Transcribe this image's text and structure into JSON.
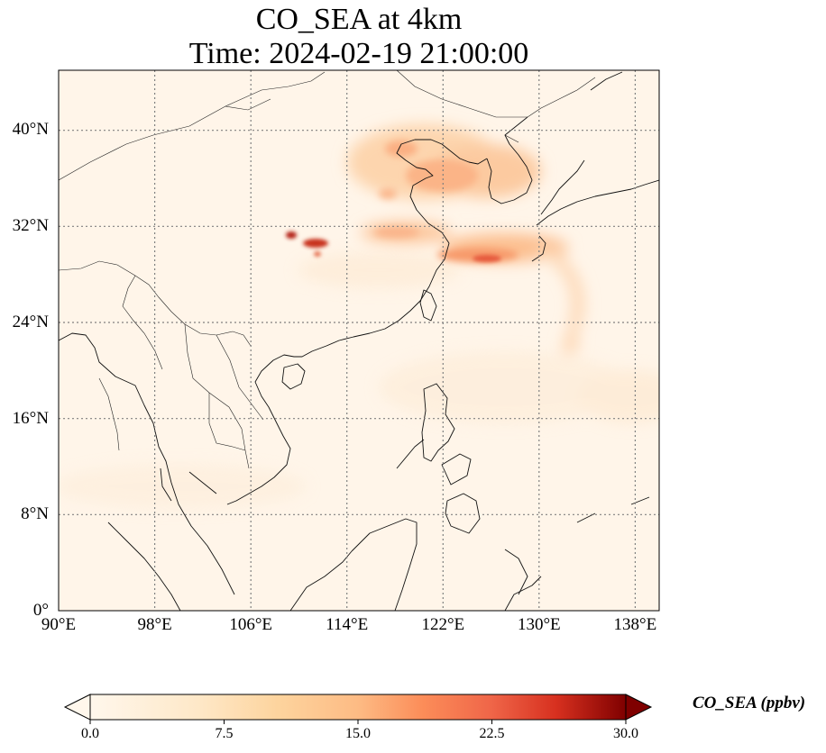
{
  "title": {
    "line1": "CO_SEA at 4km",
    "line2": "Time: 2024-02-19 21:00:00"
  },
  "axes": {
    "lon_ticks": [
      "90°E",
      "98°E",
      "106°E",
      "114°E",
      "122°E",
      "130°E",
      "138°E"
    ],
    "lat_ticks": [
      "40°N",
      "32°N",
      "24°N",
      "16°N",
      "8°N",
      "0°"
    ],
    "lon_values": [
      90,
      98,
      106,
      114,
      122,
      130,
      138
    ],
    "lat_values": [
      40,
      32,
      24,
      16,
      8,
      0
    ],
    "lon_range": [
      90,
      140
    ],
    "lat_range": [
      0,
      45
    ],
    "grid": "dotted"
  },
  "colorbar": {
    "label": "CO_SEA (ppbv)",
    "ticks": [
      "0.0",
      "7.5",
      "15.0",
      "22.5",
      "30.0"
    ],
    "tick_values": [
      0,
      7.5,
      15,
      22.5,
      30
    ],
    "range": [
      0,
      30
    ],
    "extend": "both",
    "colormap": "OrRd"
  },
  "colors": {
    "background_field": "#fff5e9",
    "coastline": "#111111",
    "gridline": "#808080"
  }
}
